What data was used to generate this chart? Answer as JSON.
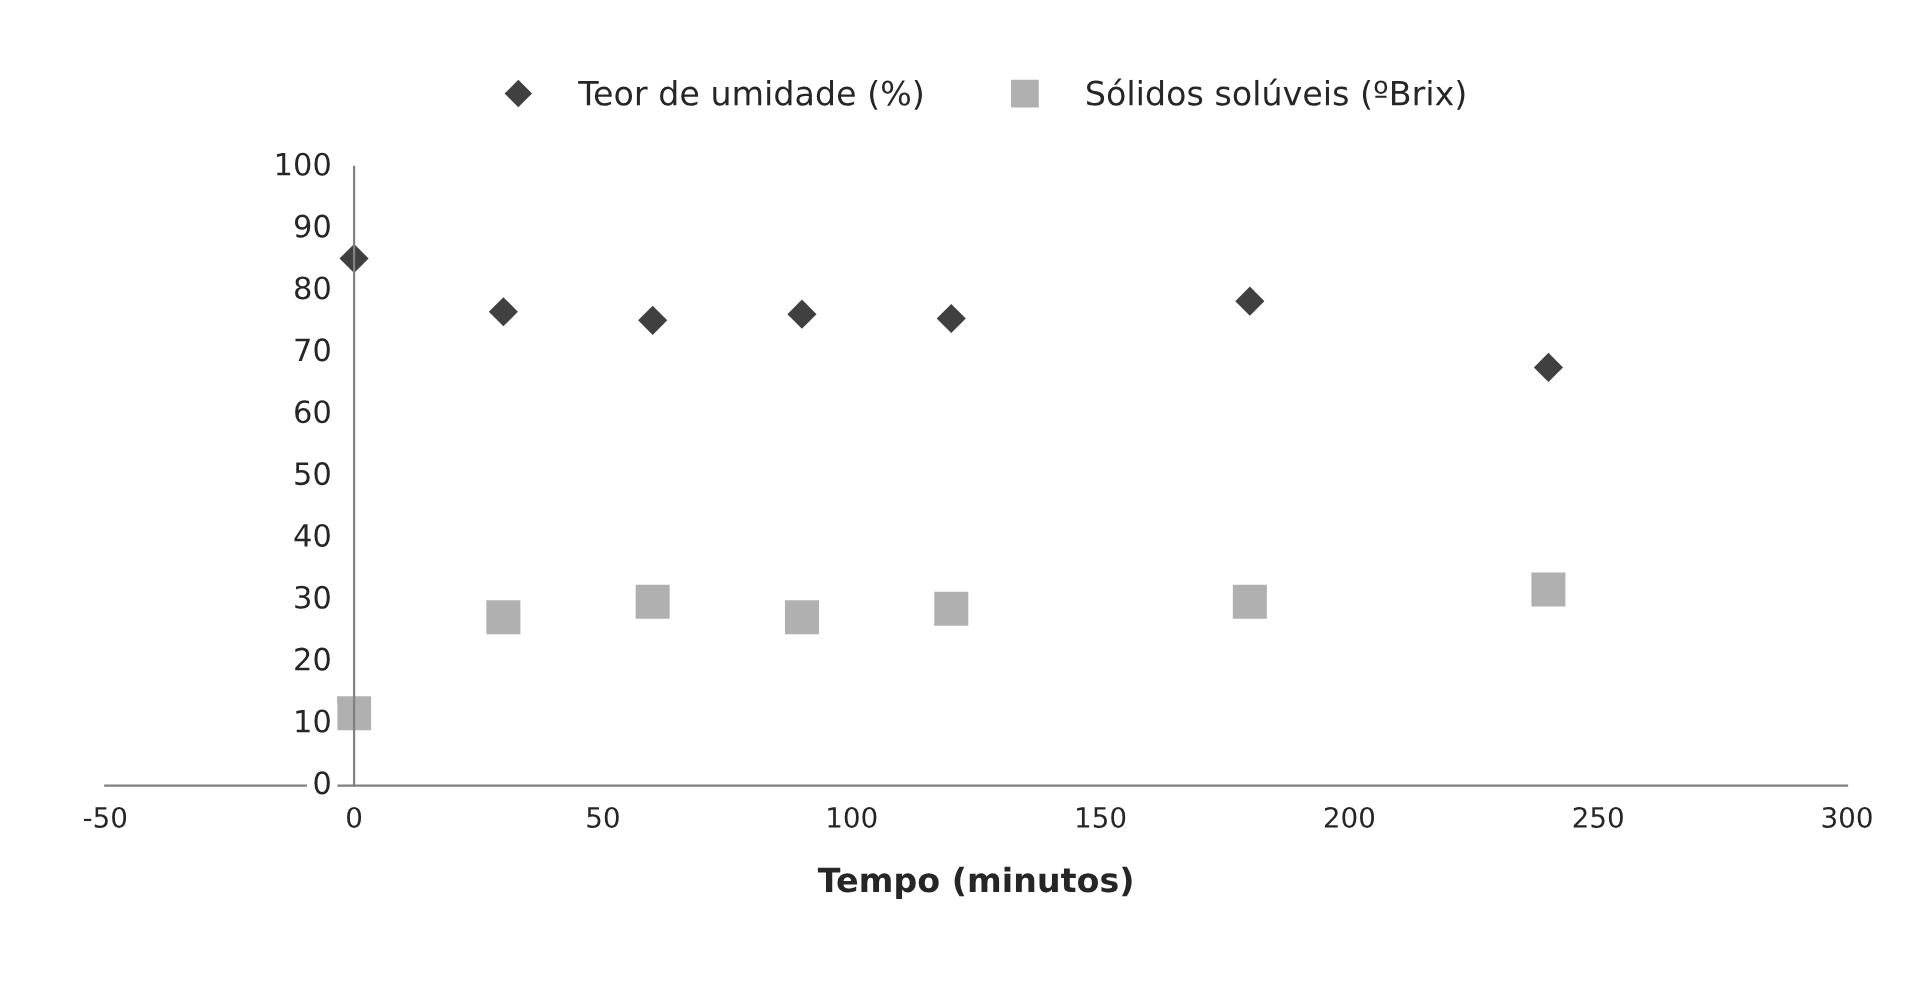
{
  "chart_data": {
    "type": "scatter",
    "xlabel": "Tempo (minutos)",
    "x": [
      0,
      30,
      60,
      90,
      120,
      180,
      240
    ],
    "series": [
      {
        "name": "Teor de umidade (%)",
        "color": "#404040",
        "marker": "diamond",
        "values": [
          85.2,
          76.6,
          75.2,
          76.2,
          75.5,
          78.3,
          67.6
        ]
      },
      {
        "name": "Sólidos solúveis (ºBrix)",
        "color": "#b0b0b0",
        "marker": "square",
        "values": [
          11.7,
          27.2,
          29.7,
          27.2,
          28.6,
          29.7,
          31.7
        ]
      }
    ],
    "xlim": [
      -50,
      300
    ],
    "xticks": [
      -50,
      0,
      50,
      100,
      150,
      200,
      250,
      300
    ],
    "ylim": [
      0,
      100
    ],
    "yticks": [
      0,
      10,
      20,
      30,
      40,
      50,
      60,
      70,
      80,
      90,
      100
    ],
    "grid": false,
    "legend": "top"
  }
}
